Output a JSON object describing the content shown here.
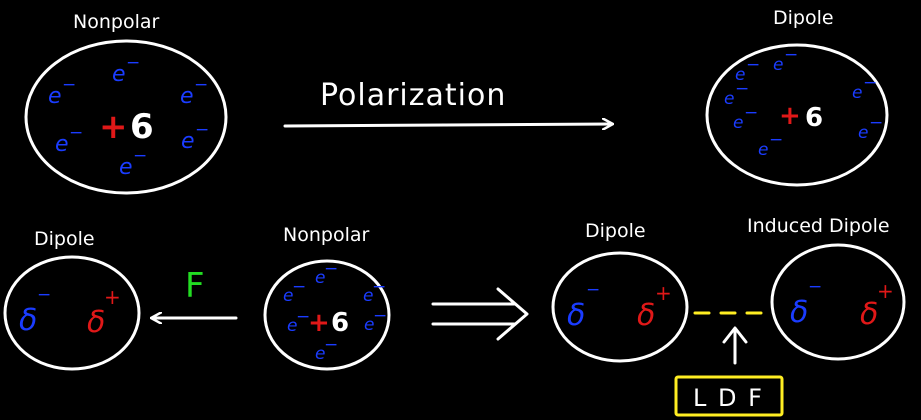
{
  "colors": {
    "background": "#000000",
    "outline": "#ffffff",
    "electron": "#1a3cff",
    "positive": "#e01818",
    "force": "#22dd22",
    "ldf": "#ffee22"
  },
  "top": {
    "left_label": "Nonpolar",
    "arrow_label": "Polarization",
    "right_label": "Dipole",
    "electron_symbol": "e",
    "electron_charge": "−",
    "nucleus_sign": "+",
    "nucleus_value": "6"
  },
  "bottom": {
    "dipole_left_label": "Dipole",
    "nonpolar_label": "Nonpolar",
    "force_label": "F",
    "dipole_right_label": "Dipole",
    "induced_dipole_label": "Induced Dipole",
    "delta_symbol": "δ",
    "delta_minus": "−",
    "delta_plus": "+",
    "ldf_label": "L D F"
  }
}
